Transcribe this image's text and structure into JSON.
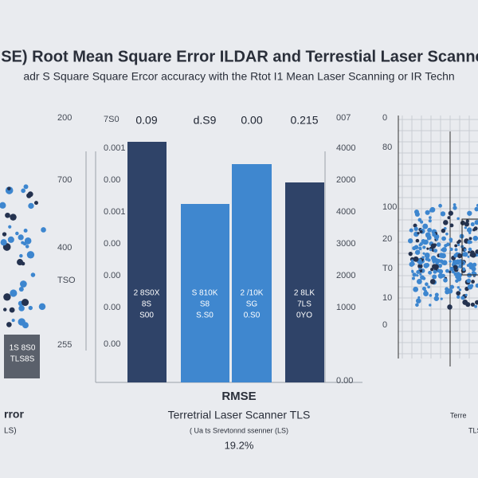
{
  "header": {
    "title": "MSE) Root Mean Square Error ILDAR and Terrestial Laser Scanner",
    "subtitle": "adr S Square Square Ercor accuracy with the Rtot I1 Mean Laser Scanning or IR Techn"
  },
  "left_panel": {
    "axis_labels": [
      "200",
      "700",
      "400",
      "TSO",
      "255"
    ],
    "box_lines": [
      "1S 8S0",
      "TLS8S"
    ],
    "footer": [
      "rror",
      "LS)"
    ]
  },
  "center_panel": {
    "left_axis_labels": [
      "7S0",
      "0.001",
      "0.00",
      "0.001",
      "0.00",
      "0.00",
      "0.00",
      "0.00"
    ],
    "right_axis_labels": [
      "007",
      "4000",
      "2000",
      "4000",
      "3000",
      "2000",
      "1000",
      "0.00"
    ],
    "top_labels": [
      "0.09",
      "d.S9",
      "0.00",
      "0.215"
    ],
    "bar_labels": [
      [
        "2 8S0X",
        "8S",
        "S00"
      ],
      [
        "S 810K",
        "S8",
        "S.S0"
      ],
      [
        "2 /10K",
        "SG",
        "0.S0"
      ],
      [
        "2 8LK",
        "7LS",
        "0YO"
      ]
    ],
    "footer": {
      "heading": "RMSE",
      "subtitle": "Terretrial Laser Scanner TLS",
      "note": "( Ua ts Srevtonnd ssenner (LS)",
      "percent": "19.2%"
    }
  },
  "right_panel": {
    "axis_labels": [
      "0",
      "80",
      "100",
      "20",
      "T0",
      "10",
      "0"
    ],
    "footer": [
      "Terre",
      "TLS"
    ]
  }
}
